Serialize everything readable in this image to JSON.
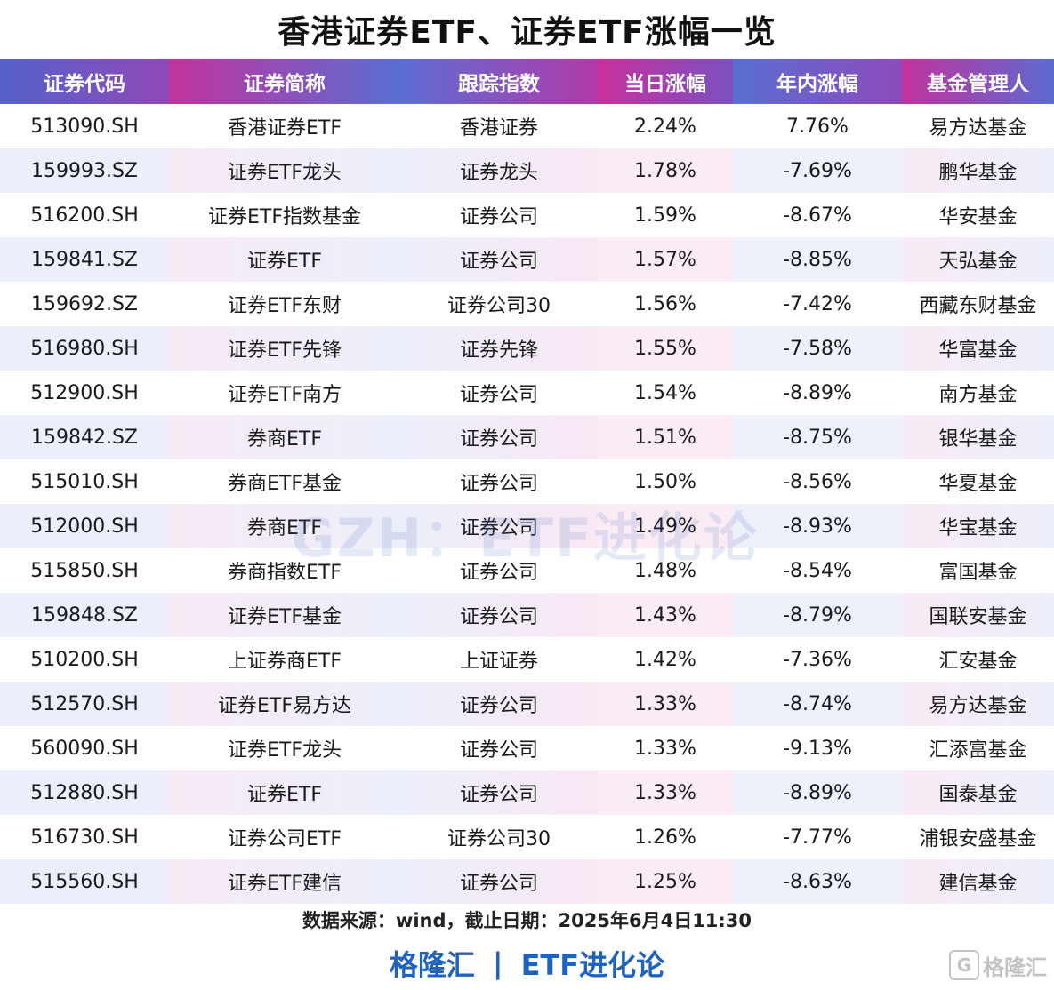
{
  "title": "香港证券ETF、证券ETF涨幅一览",
  "headers": [
    "证券代码",
    "证券简称",
    "跟踪指数",
    "当日涨幅",
    "年内涨幅",
    "基金管理人"
  ],
  "rows": [
    {
      "code": "513090.SH",
      "name": "香港证券ETF",
      "index": "香港证券",
      "day": "2.24%",
      "ytd": "7.76%",
      "manager": "易方达基金"
    },
    {
      "code": "159993.SZ",
      "name": "证券ETF龙头",
      "index": "证券龙头",
      "day": "1.78%",
      "ytd": "-7.69%",
      "manager": "鹏华基金"
    },
    {
      "code": "516200.SH",
      "name": "证券ETF指数基金",
      "index": "证券公司",
      "day": "1.59%",
      "ytd": "-8.67%",
      "manager": "华安基金"
    },
    {
      "code": "159841.SZ",
      "name": "证券ETF",
      "index": "证券公司",
      "day": "1.57%",
      "ytd": "-8.85%",
      "manager": "天弘基金"
    },
    {
      "code": "159692.SZ",
      "name": "证券ETF东财",
      "index": "证券公司30",
      "day": "1.56%",
      "ytd": "-7.42%",
      "manager": "西藏东财基金"
    },
    {
      "code": "516980.SH",
      "name": "证券ETF先锋",
      "index": "证券先锋",
      "day": "1.55%",
      "ytd": "-7.58%",
      "manager": "华富基金"
    },
    {
      "code": "512900.SH",
      "name": "证券ETF南方",
      "index": "证券公司",
      "day": "1.54%",
      "ytd": "-8.89%",
      "manager": "南方基金"
    },
    {
      "code": "159842.SZ",
      "name": "券商ETF",
      "index": "证券公司",
      "day": "1.51%",
      "ytd": "-8.75%",
      "manager": "银华基金"
    },
    {
      "code": "515010.SH",
      "name": "券商ETF基金",
      "index": "证券公司",
      "day": "1.50%",
      "ytd": "-8.56%",
      "manager": "华夏基金"
    },
    {
      "code": "512000.SH",
      "name": "券商ETF",
      "index": "证券公司",
      "day": "1.49%",
      "ytd": "-8.93%",
      "manager": "华宝基金"
    },
    {
      "code": "515850.SH",
      "name": "券商指数ETF",
      "index": "证券公司",
      "day": "1.48%",
      "ytd": "-8.54%",
      "manager": "富国基金"
    },
    {
      "code": "159848.SZ",
      "name": "证券ETF基金",
      "index": "证券公司",
      "day": "1.43%",
      "ytd": "-8.79%",
      "manager": "国联安基金"
    },
    {
      "code": "510200.SH",
      "name": "上证券商ETF",
      "index": "上证证券",
      "day": "1.42%",
      "ytd": "-7.36%",
      "manager": "汇安基金"
    },
    {
      "code": "512570.SH",
      "name": "证券ETF易方达",
      "index": "证券公司",
      "day": "1.33%",
      "ytd": "-8.74%",
      "manager": "易方达基金"
    },
    {
      "code": "560090.SH",
      "name": "证券ETF龙头",
      "index": "证券公司",
      "day": "1.33%",
      "ytd": "-9.13%",
      "manager": "汇添富基金"
    },
    {
      "code": "512880.SH",
      "name": "证券ETF",
      "index": "证券公司",
      "day": "1.33%",
      "ytd": "-8.89%",
      "manager": "国泰基金"
    },
    {
      "code": "516730.SH",
      "name": "证券公司ETF",
      "index": "证券公司30",
      "day": "1.26%",
      "ytd": "-7.77%",
      "manager": "浦银安盛基金"
    },
    {
      "code": "515560.SH",
      "name": "证券ETF建信",
      "index": "证券公司",
      "day": "1.25%",
      "ytd": "-8.63%",
      "manager": "建信基金"
    }
  ],
  "watermark": "GZH：ETF进化论",
  "source": "数据来源：wind，截止日期：2025年6月4日11:30",
  "footer": {
    "brand": "格隆汇",
    "separator": "|",
    "column": "ETF进化论"
  },
  "corner_logo": {
    "glyph": "G",
    "text": "格隆汇"
  },
  "colors": {
    "up": "#e60012",
    "down": "#17a04a",
    "footer": "#1f63c0"
  }
}
